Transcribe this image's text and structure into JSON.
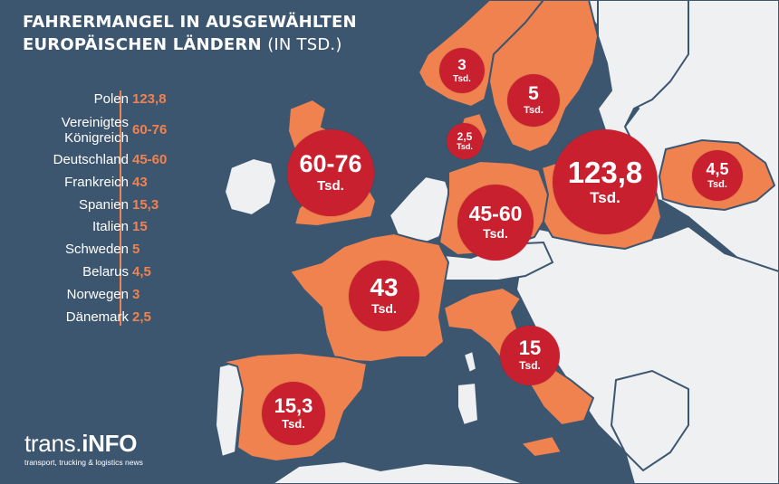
{
  "title": {
    "line1": "FAHRERMANGEL IN AUSGEWÄHLTEN",
    "line2": "EUROPÄISCHEN LÄNDERN",
    "suffix": "(IN TSD.)"
  },
  "colors": {
    "sea": "#3d5670",
    "land": "#eef0f2",
    "highlight": "#f0824f",
    "bubble": "#c8202f",
    "text": "#ffffff"
  },
  "table": [
    {
      "country": "Polen",
      "value": "123,8"
    },
    {
      "country": "Vereinigtes Königreich",
      "value": "60-76"
    },
    {
      "country": "Deutschland",
      "value": "45-60"
    },
    {
      "country": "Frankreich",
      "value": "43"
    },
    {
      "country": "Spanien",
      "value": "15,3"
    },
    {
      "country": "Italien",
      "value": "15"
    },
    {
      "country": "Schweden",
      "value": "5"
    },
    {
      "country": "Belarus",
      "value": "4,5"
    },
    {
      "country": "Norwegen",
      "value": "3"
    },
    {
      "country": "Dänemark",
      "value": "2,5"
    }
  ],
  "table_country_lines": {
    "vk_line1": "Vereinigtes",
    "vk_line2": "Königreich"
  },
  "bubbles": {
    "polen": {
      "value": "123,8",
      "unit": "Tsd."
    },
    "uk": {
      "value": "60-76",
      "unit": "Tsd."
    },
    "deutschland": {
      "value": "45-60",
      "unit": "Tsd."
    },
    "frankreich": {
      "value": "43",
      "unit": "Tsd."
    },
    "spanien": {
      "value": "15,3",
      "unit": "Tsd."
    },
    "italien": {
      "value": "15",
      "unit": "Tsd."
    },
    "schweden": {
      "value": "5",
      "unit": "Tsd."
    },
    "belarus": {
      "value": "4,5",
      "unit": "Tsd."
    },
    "norwegen": {
      "value": "3",
      "unit": "Tsd."
    },
    "daenemark": {
      "value": "2,5",
      "unit": "Tsd."
    }
  },
  "logo": {
    "brand_part1": "trans.",
    "brand_part2": "iNFO",
    "tagline": "transport, trucking & logistics news"
  }
}
